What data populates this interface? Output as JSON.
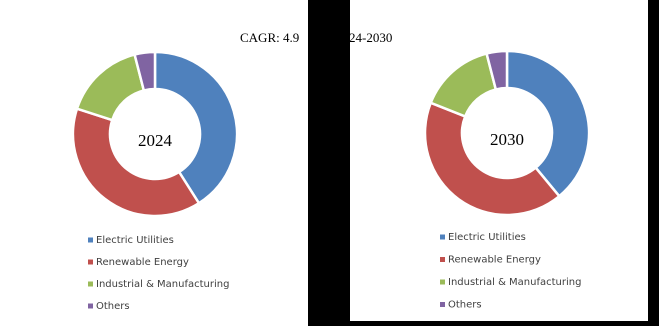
{
  "title_parts": [
    "CAGR: 4.9",
    "24-2030"
  ],
  "chart_data": [
    {
      "type": "pie",
      "center_label": "2024",
      "categories": [
        "Electric Utilities",
        "Renewable Energy",
        "Industrial & Manufacturing",
        "Others"
      ],
      "values": [
        41,
        39,
        16,
        4
      ],
      "colors": [
        "#4f81bd",
        "#c0504d",
        "#9bbb59",
        "#8064a2"
      ]
    },
    {
      "type": "pie",
      "center_label": "2030",
      "categories": [
        "Electric Utilities",
        "Renewable Energy",
        "Industrial & Manufacturing",
        "Others"
      ],
      "values": [
        39,
        42,
        15,
        4
      ],
      "colors": [
        "#4f81bd",
        "#c0504d",
        "#9bbb59",
        "#8064a2"
      ]
    }
  ]
}
